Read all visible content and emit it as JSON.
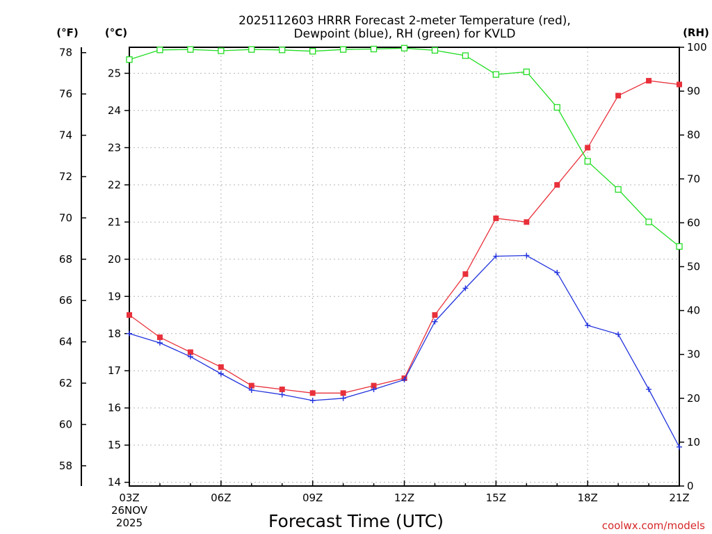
{
  "chart_data": {
    "type": "line",
    "title": [
      "2025112603 HRRR Forecast 2-meter Temperature (red),",
      "Dewpoint (blue), RH (green) for KVLD"
    ],
    "xlabel": "Forecast Time (UTC)",
    "unit_labels": {
      "fahrenheit": "(°F)",
      "celsius": "(°C)",
      "rh": "(RH)"
    },
    "x": [
      "03Z",
      "04Z",
      "05Z",
      "06Z",
      "07Z",
      "08Z",
      "09Z",
      "10Z",
      "11Z",
      "12Z",
      "13Z",
      "14Z",
      "15Z",
      "16Z",
      "17Z",
      "18Z",
      "19Z",
      "20Z",
      "21Z"
    ],
    "x_tick_labels": [
      "03Z",
      "06Z",
      "09Z",
      "12Z",
      "15Z",
      "18Z",
      "21Z"
    ],
    "date_label": [
      "26NOV",
      "2025"
    ],
    "celsius_axis": {
      "ticks": [
        14,
        15,
        16,
        17,
        18,
        19,
        20,
        21,
        22,
        23,
        24,
        25
      ],
      "ylim": [
        13.9,
        25.7
      ]
    },
    "fahrenheit_axis": {
      "ticks": [
        58,
        60,
        62,
        64,
        66,
        68,
        70,
        72,
        74,
        76,
        78
      ]
    },
    "rh_axis": {
      "ticks": [
        0,
        10,
        20,
        30,
        40,
        50,
        60,
        70,
        80,
        90,
        100
      ],
      "ylim": [
        0,
        100
      ]
    },
    "series": [
      {
        "name": "Temperature",
        "axis": "celsius",
        "color": "#e8303a",
        "marker": "square-filled",
        "values": [
          18.5,
          17.9,
          17.5,
          17.1,
          16.6,
          16.5,
          16.4,
          16.4,
          16.6,
          16.8,
          18.5,
          19.6,
          21.1,
          21.0,
          22.0,
          23.0,
          24.4,
          24.8,
          24.7
        ]
      },
      {
        "name": "Dewpoint",
        "axis": "celsius",
        "color": "#2233dd",
        "marker": "plus",
        "values": [
          18.0,
          17.75,
          17.38,
          16.92,
          16.48,
          16.36,
          16.2,
          16.26,
          16.5,
          16.76,
          18.32,
          19.22,
          20.08,
          20.1,
          19.64,
          18.22,
          17.98,
          16.5,
          14.95
        ]
      },
      {
        "name": "RH",
        "axis": "rh",
        "color": "#22dd22",
        "marker": "square-open",
        "values": [
          97.2,
          99.4,
          99.5,
          99.2,
          99.5,
          99.4,
          99.1,
          99.5,
          99.6,
          99.8,
          99.3,
          98.1,
          93.8,
          94.4,
          86.3,
          74.0,
          67.6,
          60.2,
          54.6
        ]
      }
    ]
  },
  "credit": "coolwx.com/models"
}
